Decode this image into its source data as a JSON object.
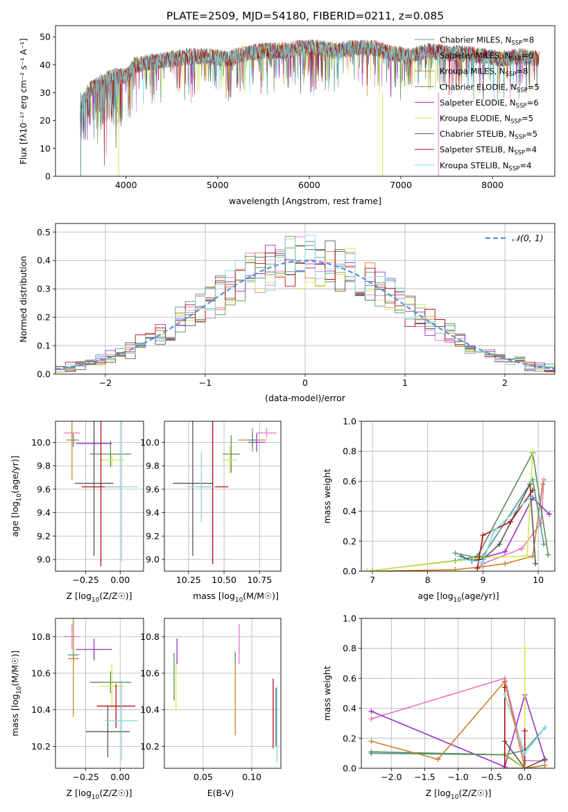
{
  "figure": {
    "title": "PLATE=2509, MJD=54180, FIBERID=0211, z=0.085"
  },
  "chart_data": [
    {
      "id": "spectrum",
      "type": "line",
      "xlabel": "wavelength [Angstrom, rest frame]",
      "ylabel": "Flux [fλ10⁻¹⁷ erg cm⁻² s⁻¹ A⁻¹]",
      "xlim": [
        3230,
        8680
      ],
      "ylim": [
        0,
        54
      ],
      "xticks": [
        4000,
        5000,
        6000,
        7000,
        8000
      ],
      "yticks": [
        0,
        10,
        20,
        30,
        40,
        50
      ],
      "grid": false,
      "legend_position": "top-right",
      "spectrum_points": [
        [
          3500,
          25
        ],
        [
          3600,
          31
        ],
        [
          3700,
          33
        ],
        [
          3800,
          35
        ],
        [
          3900,
          36
        ],
        [
          4000,
          36
        ],
        [
          4100,
          40
        ],
        [
          4300,
          41
        ],
        [
          4500,
          42
        ],
        [
          4700,
          43
        ],
        [
          4900,
          43
        ],
        [
          5100,
          42
        ],
        [
          5300,
          44
        ],
        [
          5500,
          45
        ],
        [
          5700,
          45
        ],
        [
          5900,
          46
        ],
        [
          6100,
          46
        ],
        [
          6300,
          45
        ],
        [
          6500,
          46
        ],
        [
          6700,
          46
        ],
        [
          6900,
          44
        ],
        [
          7100,
          43
        ],
        [
          7300,
          45
        ],
        [
          7500,
          44
        ],
        [
          7700,
          44
        ],
        [
          7900,
          43
        ],
        [
          8100,
          42
        ],
        [
          8300,
          43
        ],
        [
          8500,
          42
        ]
      ],
      "series": [
        {
          "name": "Chabrier MILES, N_SSP=8",
          "label_main": "Chabrier MILES, N",
          "label_sub": "SSP",
          "label_tail": "=8",
          "color": "#4a9a8a"
        },
        {
          "name": "Salpeter MILES, N_SSP=6",
          "label_main": "Salpeter MILES, N",
          "label_sub": "SSP",
          "label_tail": "=6",
          "color": "#e377c2"
        },
        {
          "name": "Kroupa MILES, N_SSP=8",
          "label_main": "Kroupa MILES, N",
          "label_sub": "SSP",
          "label_tail": "=8",
          "color": "#c8822a"
        },
        {
          "name": "Chabrier ELODIE, N_SSP=5",
          "label_main": "Chabrier ELODIE, N",
          "label_sub": "SSP",
          "label_tail": "=5",
          "color": "#5a8a5a"
        },
        {
          "name": "Salpeter ELODIE, N_SSP=6",
          "label_main": "Salpeter ELODIE, N",
          "label_sub": "SSP",
          "label_tail": "=6",
          "color": "#9b30c8"
        },
        {
          "name": "Kroupa ELODIE, N_SSP=5",
          "label_main": "Kroupa ELODIE, N",
          "label_sub": "SSP",
          "label_tail": "=5",
          "color": "#d4e84a"
        },
        {
          "name": "Chabrier STELIB, N_SSP=5",
          "label_main": "Chabrier STELIB, N",
          "label_sub": "SSP",
          "label_tail": "=5",
          "color": "#555555"
        },
        {
          "name": "Salpeter STELIB, N_SSP=4",
          "label_main": "Salpeter STELIB, N",
          "label_sub": "SSP",
          "label_tail": "=4",
          "color": "#b01010"
        },
        {
          "name": "Kroupa STELIB, N_SSP=4",
          "label_main": "Kroupa STELIB, N",
          "label_sub": "SSP",
          "label_tail": "=4",
          "color": "#80d8e0"
        }
      ]
    },
    {
      "id": "residuals",
      "type": "line",
      "xlabel": "(data-model)/error",
      "ylabel": "Normed distribution",
      "xlim": [
        -2.5,
        2.5
      ],
      "ylim": [
        0,
        0.53
      ],
      "xticks": [
        -2,
        -1,
        0,
        1,
        2
      ],
      "xtick_labels": [
        "−2",
        "−1",
        "0",
        "1",
        "2"
      ],
      "yticks": [
        0.0,
        0.1,
        0.2,
        0.3,
        0.4,
        0.5
      ],
      "ytick_labels": [
        "0.0",
        "0.1",
        "0.2",
        "0.3",
        "0.4",
        "0.5"
      ],
      "grid": true,
      "legend_position": "top-right",
      "reference_curve": {
        "name": "N(0,1)",
        "label": "𝒩(0, 1)",
        "color": "#5a8fd8",
        "style": "dashed"
      },
      "histogram_series_colors": [
        "#4a9a8a",
        "#e377c2",
        "#c8822a",
        "#5a8a5a",
        "#9b30c8",
        "#d4e84a",
        "#555555",
        "#b01010",
        "#80d8e0"
      ]
    },
    {
      "id": "age-vs-Z",
      "type": "scatter",
      "xlabel_main": "Z [log",
      "xlabel_sub": "10",
      "xlabel_tail": "(Z/Z☉)]",
      "ylabel_main": "age  [log",
      "ylabel_sub": "10",
      "ylabel_tail": "(age/yr)]",
      "xlim": [
        -0.47,
        0.17
      ],
      "ylim": [
        8.9,
        10.18
      ],
      "xticks": [
        -0.25,
        0.0
      ],
      "xtick_labels": [
        "−0.25",
        "0.00"
      ],
      "yticks": [
        9.0,
        9.2,
        9.4,
        9.6,
        9.8,
        10.0
      ],
      "ytick_labels": [
        "9.0",
        "9.2",
        "9.4",
        "9.6",
        "9.8",
        "10.0"
      ],
      "grid": true,
      "points": [
        {
          "color": "#4a9a8a",
          "x": -0.34,
          "xerr": 0.04,
          "y": 10.02,
          "yerr": 0.06
        },
        {
          "color": "#e377c2",
          "x": -0.35,
          "xerr": 0.06,
          "y": 10.08,
          "yerr": 0.04
        },
        {
          "color": "#c8822a",
          "x": -0.35,
          "xerr": 0.04,
          "y": 10.02,
          "yerr": 0.34
        },
        {
          "color": "#5a8a5a",
          "x": -0.07,
          "xerr": 0.15,
          "y": 9.9,
          "yerr": 0.11
        },
        {
          "color": "#9b30c8",
          "x": -0.19,
          "xerr": 0.13,
          "y": 9.99,
          "yerr": 0.08
        },
        {
          "color": "#d4e84a",
          "x": -0.06,
          "xerr": 0.09,
          "y": 9.85,
          "yerr": 0.06
        },
        {
          "color": "#555555",
          "x": -0.19,
          "xerr": 0.14,
          "y": 9.65,
          "yerr": 0.62
        },
        {
          "color": "#b01010",
          "x": -0.14,
          "xerr": 0.14,
          "y": 9.62,
          "yerr": 0.68
        },
        {
          "color": "#80d8e0",
          "x": 0.01,
          "xerr": 0.12,
          "y": 9.62,
          "yerr": 0.64
        }
      ]
    },
    {
      "id": "age-vs-mass",
      "type": "scatter",
      "xlabel_main": "mass [log",
      "xlabel_sub": "10",
      "xlabel_tail": "(M/M☉)]",
      "ylabel_main": "",
      "ylabel_sub": "",
      "ylabel_tail": "",
      "xlim": [
        10.08,
        10.9
      ],
      "ylim": [
        8.9,
        10.18
      ],
      "xticks": [
        10.25,
        10.5,
        10.75
      ],
      "xtick_labels": [
        "10.25",
        "10.50",
        "10.75"
      ],
      "yticks": [
        9.0,
        9.2,
        9.4,
        9.6,
        9.8,
        10.0
      ],
      "ytick_labels": [
        "9.0",
        "9.2",
        "9.4",
        "9.6",
        "9.8",
        "10.0"
      ],
      "grid": true,
      "points": [
        {
          "color": "#e377c2",
          "x": 10.8,
          "xerr": 0.07,
          "y": 10.08,
          "yerr": 0.04
        },
        {
          "color": "#9b30c8",
          "x": 10.73,
          "xerr": 0.06,
          "y": 10.0,
          "yerr": 0.08
        },
        {
          "color": "#c8822a",
          "x": 10.7,
          "xerr": 0.1,
          "y": 10.02,
          "yerr": 0.1
        },
        {
          "color": "#4a9a8a",
          "x": 10.7,
          "xerr": 0.03,
          "y": 10.02,
          "yerr": 0.06
        },
        {
          "color": "#5a8a5a",
          "x": 10.55,
          "xerr": 0.06,
          "y": 9.9,
          "yerr": 0.16
        },
        {
          "color": "#d4e84a",
          "x": 10.54,
          "xerr": 0.05,
          "y": 9.85,
          "yerr": 0.12
        },
        {
          "color": "#555555",
          "x": 10.28,
          "xerr": 0.14,
          "y": 9.65,
          "yerr": 0.62
        },
        {
          "color": "#b01010",
          "x": 10.42,
          "xerr": 0.11,
          "y": 9.62,
          "yerr": 0.66
        },
        {
          "color": "#80d8e0",
          "x": 10.34,
          "xerr": 0.1,
          "y": 9.62,
          "yerr": 0.3
        }
      ]
    },
    {
      "id": "weight-vs-age",
      "type": "line",
      "xlabel_main": "age  [log",
      "xlabel_sub": "10",
      "xlabel_tail": "(age/yr)]",
      "ylabel": "mass weight",
      "xlim": [
        6.8,
        10.3
      ],
      "ylim": [
        0,
        1.0
      ],
      "xticks": [
        7,
        8,
        9,
        10
      ],
      "xtick_labels": [
        "7",
        "8",
        "9",
        "10"
      ],
      "yticks": [
        0.0,
        0.2,
        0.4,
        0.6,
        0.8,
        1.0
      ],
      "ytick_labels": [
        "0.0",
        "0.2",
        "0.4",
        "0.6",
        "0.8",
        "1.0"
      ],
      "grid": true,
      "series": [
        {
          "color": "#e377c2",
          "x": [
            8.9,
            9.0,
            9.7,
            10.05,
            10.1
          ],
          "y": [
            0.02,
            0.05,
            0.15,
            0.32,
            0.61
          ]
        },
        {
          "color": "#c8822a",
          "x": [
            7.0,
            8.5,
            9.0,
            9.4,
            9.9,
            10.08
          ],
          "y": [
            0.0,
            0.01,
            0.03,
            0.05,
            0.1,
            0.58
          ]
        },
        {
          "color": "#9b30c8",
          "x": [
            8.8,
            9.0,
            9.4,
            9.9,
            10.2
          ],
          "y": [
            0.07,
            0.09,
            0.13,
            0.49,
            0.38
          ]
        },
        {
          "color": "#4a9a8a",
          "x": [
            8.5,
            8.9,
            9.0,
            9.9,
            10.1
          ],
          "y": [
            0.12,
            0.09,
            0.1,
            0.61,
            0.18
          ]
        },
        {
          "color": "#5a8a5a",
          "x": [
            6.9,
            8.5,
            8.9,
            9.9,
            10.18
          ],
          "y": [
            0.0,
            0.07,
            0.1,
            0.79,
            0.11
          ]
        },
        {
          "color": "#d4e84a",
          "x": [
            6.9,
            8.8,
            9.0,
            9.8,
            9.9
          ],
          "y": [
            0.0,
            0.08,
            0.09,
            0.1,
            0.8
          ]
        },
        {
          "color": "#555555",
          "x": [
            8.6,
            8.8,
            9.0,
            9.3,
            9.85,
            9.95
          ],
          "y": [
            0.1,
            0.07,
            0.08,
            0.18,
            0.58,
            0.05
          ]
        },
        {
          "color": "#b01010",
          "x": [
            8.9,
            9.0,
            9.5,
            9.9
          ],
          "y": [
            0.02,
            0.24,
            0.33,
            0.54
          ]
        },
        {
          "color": "#80d8e0",
          "x": [
            8.6,
            9.0,
            9.2,
            9.85
          ],
          "y": [
            0.08,
            0.06,
            0.27,
            0.49
          ]
        }
      ]
    },
    {
      "id": "mass-vs-Z",
      "type": "scatter",
      "xlabel_main": "Z [log",
      "xlabel_sub": "10",
      "xlabel_tail": "(Z/Z☉)]",
      "ylabel_main": "mass [log",
      "ylabel_sub": "10",
      "ylabel_tail": "(M/M☉)]",
      "xlim": [
        -0.47,
        0.17
      ],
      "ylim": [
        10.08,
        10.9
      ],
      "xticks": [
        -0.25,
        0.0
      ],
      "xtick_labels": [
        "−0.25",
        "0.00"
      ],
      "yticks": [
        10.2,
        10.4,
        10.6,
        10.8
      ],
      "ytick_labels": [
        "10.2",
        "10.4",
        "10.6",
        "10.8"
      ],
      "grid": true,
      "points": [
        {
          "color": "#e377c2",
          "x": -0.35,
          "xerr": 0.06,
          "y": 10.8,
          "yerr": 0.07
        },
        {
          "color": "#4a9a8a",
          "x": -0.34,
          "xerr": 0.04,
          "y": 10.7,
          "yerr": 0.03
        },
        {
          "color": "#c8822a",
          "x": -0.34,
          "xerr": 0.04,
          "y": 10.68,
          "yerr": 0.32
        },
        {
          "color": "#9b30c8",
          "x": -0.19,
          "xerr": 0.13,
          "y": 10.73,
          "yerr": 0.06
        },
        {
          "color": "#5a8a5a",
          "x": -0.07,
          "xerr": 0.15,
          "y": 10.55,
          "yerr": 0.06
        },
        {
          "color": "#d4e84a",
          "x": -0.06,
          "xerr": 0.09,
          "y": 10.53,
          "yerr": 0.12
        },
        {
          "color": "#555555",
          "x": -0.09,
          "xerr": 0.16,
          "y": 10.28,
          "yerr": 0.14
        },
        {
          "color": "#b01010",
          "x": -0.03,
          "xerr": 0.14,
          "y": 10.42,
          "yerr": 0.12
        },
        {
          "color": "#80d8e0",
          "x": 0.01,
          "xerr": 0.12,
          "y": 10.34,
          "yerr": 0.22
        }
      ]
    },
    {
      "id": "mass-vs-ebv",
      "type": "scatter",
      "xlabel_main": "E(B-V)",
      "xlabel_sub": "",
      "xlabel_tail": "",
      "ylabel_main": "",
      "ylabel_sub": "",
      "ylabel_tail": "",
      "xlim": [
        0.01,
        0.13
      ],
      "ylim": [
        10.08,
        10.9
      ],
      "xticks": [
        0.05,
        0.1
      ],
      "xtick_labels": [
        "0.05",
        "0.10"
      ],
      "yticks": [
        10.2,
        10.4,
        10.6,
        10.8
      ],
      "ytick_labels": [
        "10.2",
        "10.4",
        "10.6",
        "10.8"
      ],
      "grid": true,
      "points": [
        {
          "color": "#e377c2",
          "x": 0.087,
          "xerr": 0,
          "y": 10.76,
          "yerr": 0.11
        },
        {
          "color": "#9b30c8",
          "x": 0.023,
          "xerr": 0,
          "y": 10.72,
          "yerr": 0.07
        },
        {
          "color": "#5a8a5a",
          "x": 0.02,
          "xerr": 0,
          "y": 10.58,
          "yerr": 0.13
        },
        {
          "color": "#d4e84a",
          "x": 0.022,
          "xerr": 0,
          "y": 10.53,
          "yerr": 0.13
        },
        {
          "color": "#c8822a",
          "x": 0.083,
          "xerr": 0,
          "y": 10.49,
          "yerr": 0.23
        },
        {
          "color": "#4a9a8a",
          "x": 0.083,
          "xerr": 0,
          "y": 10.68,
          "yerr": 0.03
        },
        {
          "color": "#b01010",
          "x": 0.122,
          "xerr": 0,
          "y": 10.38,
          "yerr": 0.19
        },
        {
          "color": "#555555",
          "x": 0.125,
          "xerr": 0,
          "y": 10.36,
          "yerr": 0.16
        },
        {
          "color": "#80d8e0",
          "x": 0.126,
          "xerr": 0,
          "y": 10.32,
          "yerr": 0.21
        }
      ]
    },
    {
      "id": "weight-vs-Z",
      "type": "line",
      "xlabel_main": "Z [log",
      "xlabel_sub": "10",
      "xlabel_tail": "(Z/Z☉)]",
      "ylabel": "mass weight",
      "xlim": [
        -2.45,
        0.45
      ],
      "ylim": [
        0,
        1.0
      ],
      "xticks": [
        -2.0,
        -1.5,
        -1.0,
        -0.5,
        0.0
      ],
      "xtick_labels": [
        "−2.0",
        "−1.5",
        "−1.0",
        "−0.5",
        "0.0"
      ],
      "yticks": [
        0.0,
        0.2,
        0.4,
        0.6,
        0.8,
        1.0
      ],
      "ytick_labels": [
        "0.0",
        "0.2",
        "0.4",
        "0.6",
        "0.8",
        "1.0"
      ],
      "grid": true,
      "series": [
        {
          "color": "#e377c2",
          "x": [
            -2.3,
            -0.3,
            0.0,
            0.3
          ],
          "y": [
            0.33,
            0.6,
            0.05,
            0.05
          ]
        },
        {
          "color": "#9b30c8",
          "x": [
            -2.3,
            -0.3,
            0.0,
            0.3
          ],
          "y": [
            0.38,
            0.01,
            0.49,
            0.06
          ]
        },
        {
          "color": "#4a9a8a",
          "x": [
            -2.3,
            -0.3,
            0.0,
            0.3
          ],
          "y": [
            0.1,
            0.09,
            0.12,
            0.27
          ]
        },
        {
          "color": "#5a8a5a",
          "x": [
            -2.3,
            -0.3,
            0.0,
            0.3
          ],
          "y": [
            0.11,
            0.09,
            0.0,
            0.0
          ]
        },
        {
          "color": "#d4e84a",
          "x": [
            -0.3,
            0.0,
            0.0
          ],
          "y": [
            0.1,
            0.0,
            0.8
          ]
        },
        {
          "color": "#555555",
          "x": [
            -0.3,
            -0.3,
            0.0,
            0.3
          ],
          "y": [
            0.58,
            0.18,
            0.0,
            0.06
          ]
        },
        {
          "color": "#b01010",
          "x": [
            -0.3,
            -0.3,
            0.0,
            0.0
          ],
          "y": [
            0.54,
            0.0,
            0.0,
            0.25
          ]
        },
        {
          "color": "#80d8e0",
          "x": [
            -0.3,
            0.0,
            0.3
          ],
          "y": [
            0.49,
            0.1,
            0.27
          ]
        },
        {
          "color": "#c8822a",
          "x": [
            -2.3,
            -1.3,
            -0.3,
            0.0,
            0.3
          ],
          "y": [
            0.18,
            0.06,
            0.58,
            0.0,
            0.02
          ]
        }
      ]
    }
  ]
}
